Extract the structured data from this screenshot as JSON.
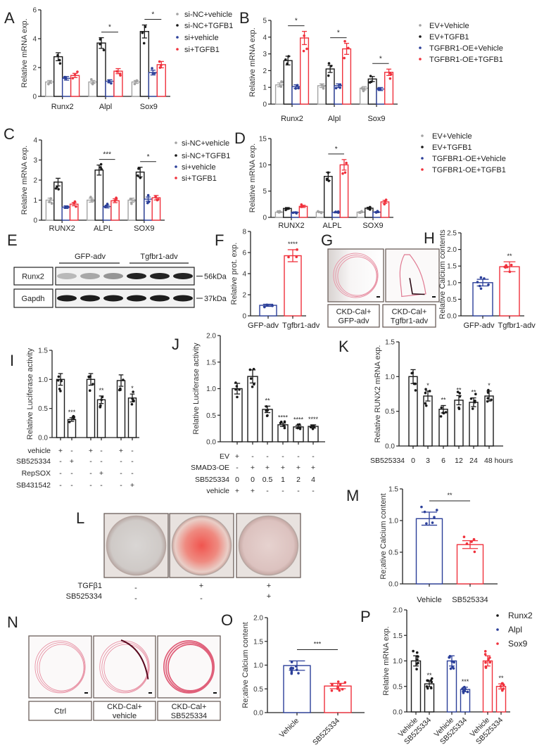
{
  "colors": {
    "gray": "#a3a3a3",
    "black": "#1a1a1a",
    "blue": "#2b3f99",
    "red": "#f0313c"
  },
  "chart_data": [
    {
      "id": "A",
      "label": "A",
      "type": "bar",
      "ylabel": "Relative mRNA exp.",
      "ylim": [
        0,
        6
      ],
      "yticks": [
        "0",
        "2",
        "4",
        "6"
      ],
      "categories": [
        "Runx2",
        "Alpl",
        "Sox9"
      ],
      "series": [
        {
          "name": "si-NC+vehicle",
          "color": "#a3a3a3",
          "values": [
            1.0,
            1.0,
            1.0
          ]
        },
        {
          "name": "si-NC+TGFB1",
          "color": "#1a1a1a",
          "values": [
            2.75,
            3.7,
            4.5
          ]
        },
        {
          "name": "si+vehicle",
          "color": "#2b3f99",
          "values": [
            1.25,
            1.05,
            1.65
          ]
        },
        {
          "name": "si+TGFB1",
          "color": "#f0313c",
          "values": [
            1.45,
            1.75,
            2.2
          ]
        }
      ],
      "significance": [
        {
          "category": 1,
          "text": "*"
        },
        {
          "category": 2,
          "text": "*"
        }
      ],
      "legend": "right"
    },
    {
      "id": "B",
      "label": "B",
      "type": "bar",
      "ylabel": "Relative mRNA exp.",
      "ylim": [
        0,
        5
      ],
      "yticks": [
        "0",
        "1",
        "2",
        "3",
        "4",
        "5"
      ],
      "categories": [
        "Runx2",
        "Alpl",
        "Sox9"
      ],
      "series": [
        {
          "name": "EV+Vehicle",
          "color": "#a3a3a3",
          "values": [
            1.15,
            1.1,
            0.95
          ]
        },
        {
          "name": "EV+TGFB1",
          "color": "#1a1a1a",
          "values": [
            2.6,
            2.1,
            1.5
          ]
        },
        {
          "name": "TGFBR1-OE+Vehicle",
          "color": "#2b3f99",
          "values": [
            1.05,
            1.1,
            0.9
          ]
        },
        {
          "name": "TGFBR1-OE+TGFB1",
          "color": "#f0313c",
          "values": [
            3.95,
            3.3,
            1.9
          ]
        }
      ],
      "significance": [
        {
          "category": 0,
          "text": "*"
        },
        {
          "category": 1,
          "text": "*"
        },
        {
          "category": 2,
          "text": "*"
        }
      ],
      "legend": "right"
    },
    {
      "id": "C",
      "label": "C",
      "type": "bar",
      "ylabel": "Relative mRNA exp.",
      "ylim": [
        0,
        4
      ],
      "yticks": [
        "0",
        "1",
        "2",
        "3",
        "4"
      ],
      "categories": [
        "RUNX2",
        "ALPL",
        "SOX9"
      ],
      "series": [
        {
          "name": "si-NC+vehicle",
          "color": "#a3a3a3",
          "values": [
            1.0,
            1.0,
            1.0
          ]
        },
        {
          "name": "si-NC+TGFB1",
          "color": "#1a1a1a",
          "values": [
            1.9,
            2.5,
            2.4
          ]
        },
        {
          "name": "si+vehicle",
          "color": "#2b3f99",
          "values": [
            0.65,
            0.68,
            1.05
          ]
        },
        {
          "name": "si+TGFB1",
          "color": "#f0313c",
          "values": [
            0.8,
            0.97,
            1.12
          ]
        }
      ],
      "significance": [
        {
          "category": 1,
          "text": "***"
        },
        {
          "category": 2,
          "text": "*"
        }
      ],
      "legend": "right"
    },
    {
      "id": "D",
      "label": "D",
      "type": "bar",
      "ylabel": "Relative mRNA exp.",
      "ylim": [
        0,
        15
      ],
      "yticks": [
        "0",
        "5",
        "10",
        "15"
      ],
      "categories": [
        "RUNX2",
        "ALPL",
        "SOX9"
      ],
      "series": [
        {
          "name": "EV+Vehicle",
          "color": "#a3a3a3",
          "values": [
            1.0,
            1.0,
            1.0
          ]
        },
        {
          "name": "EV+TGFB1",
          "color": "#1a1a1a",
          "values": [
            1.7,
            7.8,
            1.75
          ]
        },
        {
          "name": "TGFBR1-OE+Vehicle",
          "color": "#2b3f99",
          "values": [
            0.95,
            0.95,
            1.0
          ]
        },
        {
          "name": "TGFBR1-OE+TGFB1",
          "color": "#f0313c",
          "values": [
            2.1,
            10.0,
            2.95
          ]
        }
      ],
      "significance": [
        {
          "category": 1,
          "text": "*"
        }
      ],
      "legend": "right"
    },
    {
      "id": "F",
      "label": "F",
      "type": "bar",
      "ylabel": "Relative prot. exp.",
      "ylim": [
        0,
        8
      ],
      "yticks": [
        "0",
        "2",
        "4",
        "6",
        "8"
      ],
      "categories": [
        "GFP-adv",
        "Tgfbr1-adv"
      ],
      "values": [
        1.0,
        5.7
      ],
      "colors": [
        "#2b3f99",
        "#f0313c"
      ],
      "sig": [
        "",
        "****"
      ]
    },
    {
      "id": "H",
      "label": "H",
      "type": "bar",
      "ylabel": "Relative Calcium contents",
      "ylim": [
        0,
        2.5
      ],
      "yticks": [
        "0.0",
        "0.5",
        "1.0",
        "1.5",
        "2.0",
        "2.5"
      ],
      "categories": [
        "GFP-adv",
        "Tgfbr1-adv"
      ],
      "values": [
        1.0,
        1.48
      ],
      "colors": [
        "#2b3f99",
        "#f0313c"
      ],
      "sig": [
        "",
        "**"
      ]
    },
    {
      "id": "I",
      "label": "I",
      "type": "bar",
      "ylabel": "Relative Luciferase activity",
      "ylim": [
        0,
        1.5
      ],
      "yticks": [
        "0.0",
        "0.5",
        "1.0",
        "1.5"
      ],
      "values": [
        1.0,
        0.31,
        1.0,
        0.65,
        0.98,
        0.68
      ],
      "colors": [
        "#1a1a1a",
        "#1a1a1a",
        "#1a1a1a",
        "#1a1a1a",
        "#1a1a1a",
        "#1a1a1a"
      ],
      "sig": [
        "",
        "***",
        "",
        "**",
        "",
        "*"
      ],
      "condition_table": [
        {
          "label": "vehicle",
          "marks": [
            "+",
            "-",
            "+",
            "-",
            "+",
            "-"
          ]
        },
        {
          "label": "SB525334",
          "marks": [
            "-",
            "+",
            "-",
            "-",
            "-",
            "-"
          ]
        },
        {
          "label": "RepSOX",
          "marks": [
            "-",
            "-",
            "-",
            "+",
            "-",
            "-"
          ]
        },
        {
          "label": "SB431542",
          "marks": [
            "-",
            "-",
            "-",
            "-",
            "-",
            "+"
          ]
        }
      ]
    },
    {
      "id": "J",
      "label": "J",
      "type": "bar",
      "ylabel": "Relative Luciferase activity",
      "ylim": [
        0,
        2
      ],
      "yticks": [
        "0.0",
        "0.5",
        "1.0",
        "1.5",
        "2.0"
      ],
      "values": [
        1.0,
        1.23,
        0.61,
        0.32,
        0.28,
        0.29
      ],
      "colors": [
        "#1a1a1a",
        "#1a1a1a",
        "#1a1a1a",
        "#1a1a1a",
        "#1a1a1a",
        "#1a1a1a"
      ],
      "sig": [
        "",
        "",
        "**",
        "****",
        "****",
        "****"
      ],
      "condition_table": [
        {
          "label": "EV",
          "marks": [
            "+",
            "-",
            "-",
            "-",
            "-",
            "-"
          ]
        },
        {
          "label": "SMAD3-OE",
          "marks": [
            "-",
            "+",
            "+",
            "+",
            "+",
            "+"
          ]
        },
        {
          "label": "SB525334",
          "marks": [
            "0",
            "0",
            "0.5",
            "1",
            "2",
            "4"
          ]
        },
        {
          "label": "vehicle",
          "marks": [
            "+",
            "+",
            "-",
            "-",
            "-",
            "-"
          ]
        }
      ]
    },
    {
      "id": "K",
      "label": "K",
      "type": "bar",
      "ylabel": "Relative RUNX2 mRNA exp.",
      "ylim": [
        0,
        1.5
      ],
      "yticks": [
        "0.0",
        "0.5",
        "1.0",
        "1.5"
      ],
      "xlabel": "SB525334",
      "categories": [
        "0",
        "3",
        "6",
        "12",
        "24",
        "48 hours"
      ],
      "values": [
        1.0,
        0.72,
        0.53,
        0.66,
        0.63,
        0.72
      ],
      "colors": [
        "#1a1a1a",
        "#1a1a1a",
        "#1a1a1a",
        "#1a1a1a",
        "#1a1a1a",
        "#1a1a1a"
      ],
      "sig": [
        "",
        "*",
        "**",
        "**",
        "**",
        "*"
      ]
    },
    {
      "id": "M",
      "label": "M",
      "type": "bar",
      "ylabel": "Re;ative Calcium content",
      "ylim": [
        0,
        1.5
      ],
      "yticks": [
        "0.0",
        "0.5",
        "1.0",
        "1.5"
      ],
      "categories": [
        "Vehicle",
        "SB525334"
      ],
      "values": [
        1.03,
        0.62
      ],
      "colors": [
        "#2b3f99",
        "#f0313c"
      ],
      "sig_line": "**"
    },
    {
      "id": "O",
      "label": "O",
      "type": "bar",
      "ylabel": "Re;ative Calcium content",
      "ylim": [
        0,
        2
      ],
      "yticks": [
        "0.0",
        "0.5",
        "1.0",
        "1.5",
        "2.0"
      ],
      "categories": [
        "Vehicle",
        "SB525334"
      ],
      "values": [
        0.99,
        0.56
      ],
      "colors": [
        "#2b3f99",
        "#f0313c"
      ],
      "sig_line": "***"
    },
    {
      "id": "P",
      "label": "P",
      "type": "bar",
      "ylabel": "Relative mRNA exp.",
      "ylim": [
        0,
        2
      ],
      "yticks": [
        "0.0",
        "0.5",
        "1.0",
        "1.5",
        "2.0"
      ],
      "categories": [
        "Vehicle",
        "SB525334",
        "Vehicle",
        "SB525334",
        "Vehicle",
        "SB525334"
      ],
      "values": [
        1.0,
        0.55,
        1.0,
        0.44,
        1.0,
        0.5
      ],
      "colors": [
        "#1a1a1a",
        "#1a1a1a",
        "#2b3f99",
        "#2b3f99",
        "#f0313c",
        "#f0313c"
      ],
      "sig": [
        "",
        "**",
        "",
        "***",
        "",
        "**"
      ],
      "legend_entries": [
        {
          "name": "Runx2",
          "color": "#1a1a1a"
        },
        {
          "name": "Alpl",
          "color": "#2b3f99"
        },
        {
          "name": "Sox9",
          "color": "#f0313c"
        }
      ]
    }
  ],
  "panels": {
    "E": {
      "label": "E",
      "groups": [
        "GFP-adv",
        "Tgfbr1-adv"
      ],
      "rows": [
        "Runx2",
        "Gapdh"
      ],
      "markers": [
        "56kDa",
        "37kDa"
      ]
    },
    "G": {
      "label": "G",
      "captions": [
        [
          "CKD-Cal+",
          "GFP-adv"
        ],
        [
          "CKD-Cal+",
          "Tgfbr1-adv"
        ]
      ]
    },
    "L": {
      "label": "L",
      "rows": [
        {
          "label": "TGFβ1",
          "marks": [
            "-",
            "+",
            "+"
          ]
        },
        {
          "label": "SB525334",
          "marks": [
            "-",
            "-",
            "+"
          ]
        }
      ]
    },
    "N": {
      "label": "N",
      "captions": [
        [
          "Ctrl"
        ],
        [
          "CKD-Cal+",
          "vehicle"
        ],
        [
          "CKD-Cal+",
          "SB525334"
        ]
      ]
    }
  }
}
